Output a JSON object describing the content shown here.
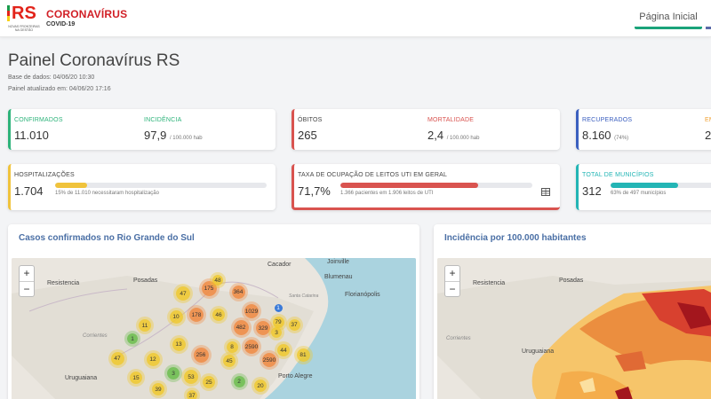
{
  "header": {
    "logo_mark": "RS",
    "logo_tagline": "NOVAS FRONTEIRAS NA GESTÃO",
    "brand_title": "CORONAVÍRUS",
    "brand_subtitle": "COVID-19",
    "nav_home": "Página Inicial"
  },
  "page": {
    "title": "Painel Coronavírus RS",
    "data_base": "Base de dados: 04/06/20 10:30",
    "updated": "Painel atualizado em: 04/06/20 17:16"
  },
  "cards": {
    "confirmados": {
      "label": "CONFIRMADOS",
      "value": "11.010"
    },
    "incidencia": {
      "label": "INCIDÊNCIA",
      "value": "97,9",
      "unit": "/ 100.000 hab"
    },
    "obitos": {
      "label": "ÓBITOS",
      "value": "265"
    },
    "mortalidade": {
      "label": "MORTALIDADE",
      "value": "2,4",
      "unit": "/ 100.000 hab"
    },
    "recuperados": {
      "label": "RECUPERADOS",
      "value": "8.160",
      "pct": "(74%)"
    },
    "extra": {
      "label": "EM",
      "value": "2."
    },
    "hospitalizacoes": {
      "label": "HOSPITALIZAÇÕES",
      "value": "1.704",
      "note": "15% de 11.010 necessitaram hospitalização",
      "fill": 0.15
    },
    "uti": {
      "label": "TAXA DE OCUPAÇÃO DE LEITOS UTI EM GERAL",
      "value": "71,7%",
      "note": "1.366 pacientes em 1.906 leitos de UTI",
      "fill": 0.717
    },
    "municipios": {
      "label": "TOTAL DE MUNICÍPIOS",
      "value": "312",
      "note": "63% de 497 municípios",
      "fill": 0.63
    }
  },
  "maps": {
    "casos_title": "Casos confirmados no Rio Grande do Sul",
    "incidencia_title": "Incidência por 100.000 habitantes",
    "zoom_in": "+",
    "zoom_out": "−",
    "places": [
      "Cacador",
      "Joinville",
      "Blumenau",
      "Resistencia",
      "Posadas",
      "Santa Catarina",
      "Florianópolis",
      "Corrientes",
      "Uruguaiana",
      "Porto Alegre"
    ],
    "clusters": [
      "47",
      "175",
      "48",
      "364",
      "1",
      "10",
      "178",
      "46",
      "1029",
      "11",
      "79",
      "37",
      "1",
      "13",
      "482",
      "329",
      "8",
      "3",
      "47",
      "12",
      "256",
      "45",
      "2590",
      "44",
      "81",
      "15",
      "3",
      "53",
      "25",
      "2",
      "39",
      "37",
      "20",
      "2590"
    ],
    "colors": {
      "yellow": "#f0c828",
      "orange": "#f08c46",
      "green": "#6ebe50",
      "blue": "#3a7ad8"
    }
  }
}
